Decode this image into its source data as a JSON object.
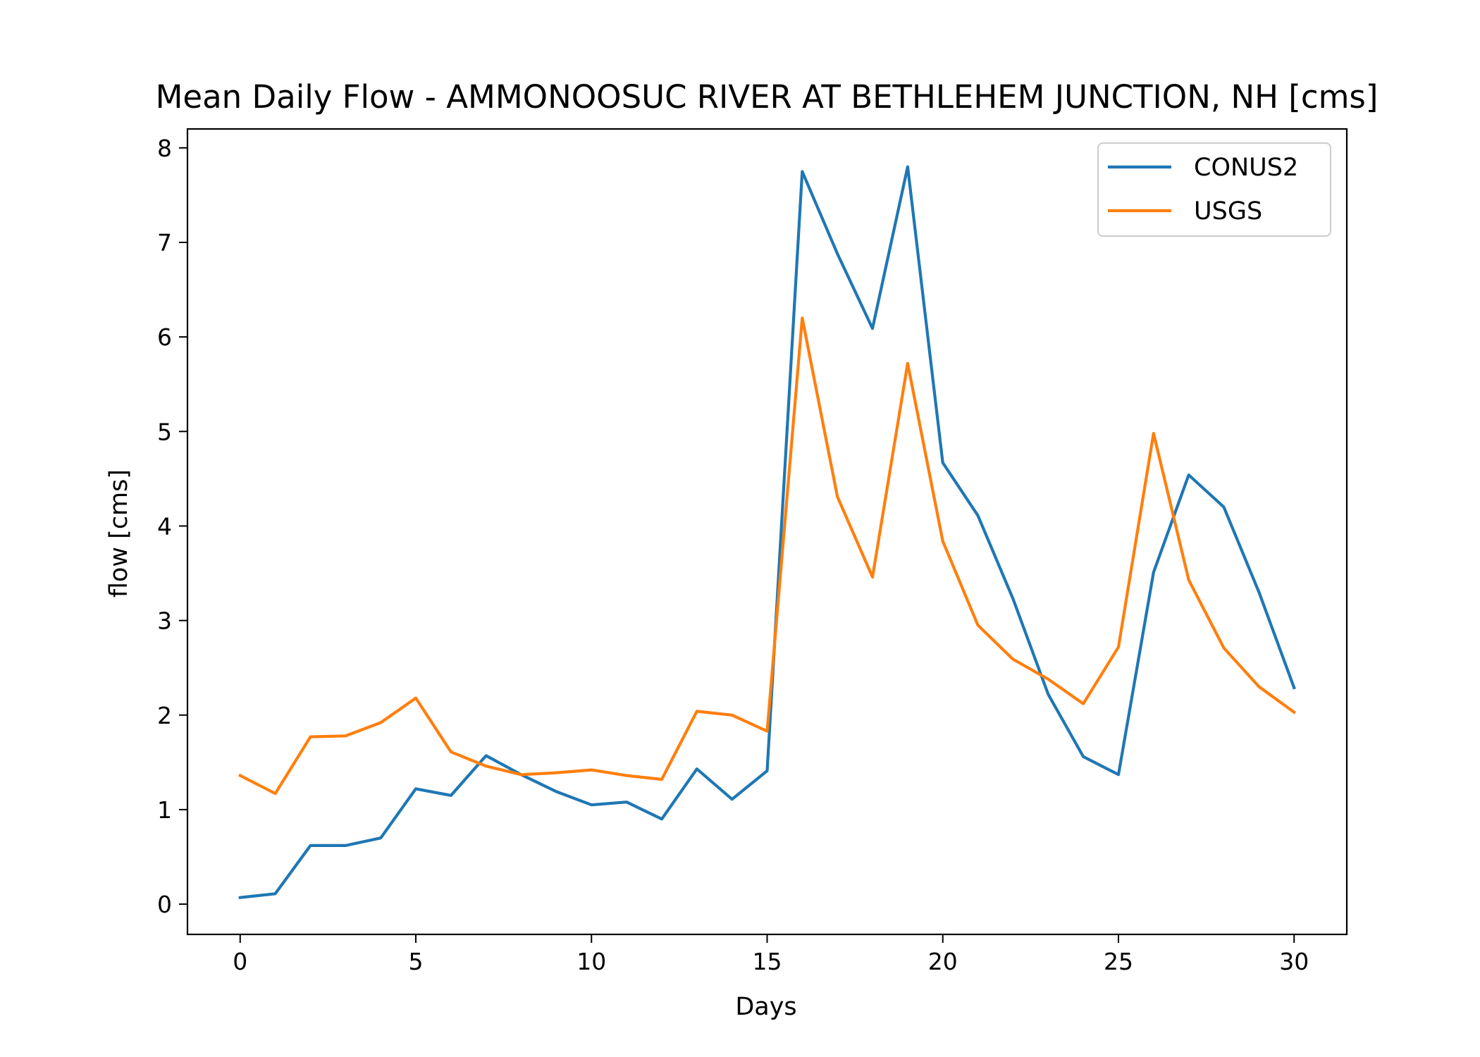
{
  "chart_data": {
    "type": "line",
    "title": "Mean Daily Flow - AMMONOOSUC RIVER AT BETHLEHEM JUNCTION, NH [cms]",
    "xlabel": "Days",
    "ylabel": "flow [cms]",
    "xlim": [
      -1.5,
      31.5
    ],
    "ylim": [
      -0.32,
      8.2
    ],
    "xticks": [
      0,
      5,
      10,
      15,
      20,
      25,
      30
    ],
    "yticks": [
      0,
      1,
      2,
      3,
      4,
      5,
      6,
      7,
      8
    ],
    "grid": false,
    "legend_position": "top-right",
    "x": [
      0,
      1,
      2,
      3,
      4,
      5,
      6,
      7,
      8,
      9,
      10,
      11,
      12,
      13,
      14,
      15,
      16,
      17,
      18,
      19,
      20,
      21,
      22,
      23,
      24,
      25,
      26,
      27,
      28,
      29,
      30
    ],
    "series": [
      {
        "name": "CONUS2",
        "color": "#1f77b4",
        "values": [
          0.07,
          0.11,
          0.62,
          0.62,
          0.7,
          1.22,
          1.15,
          1.57,
          1.37,
          1.19,
          1.05,
          1.08,
          0.9,
          1.43,
          1.11,
          1.41,
          7.75,
          6.88,
          6.09,
          7.8,
          4.67,
          4.11,
          3.23,
          2.22,
          1.56,
          1.37,
          3.51,
          4.54,
          4.2,
          3.3,
          2.29
        ]
      },
      {
        "name": "USGS",
        "color": "#ff7f0e",
        "values": [
          1.36,
          1.17,
          1.77,
          1.78,
          1.92,
          2.18,
          1.61,
          1.46,
          1.37,
          1.39,
          1.42,
          1.36,
          1.32,
          2.04,
          2.0,
          1.83,
          6.2,
          4.31,
          3.46,
          5.72,
          3.84,
          2.95,
          2.59,
          2.38,
          2.12,
          2.72,
          4.98,
          3.43,
          2.71,
          2.3,
          2.03
        ]
      }
    ]
  }
}
